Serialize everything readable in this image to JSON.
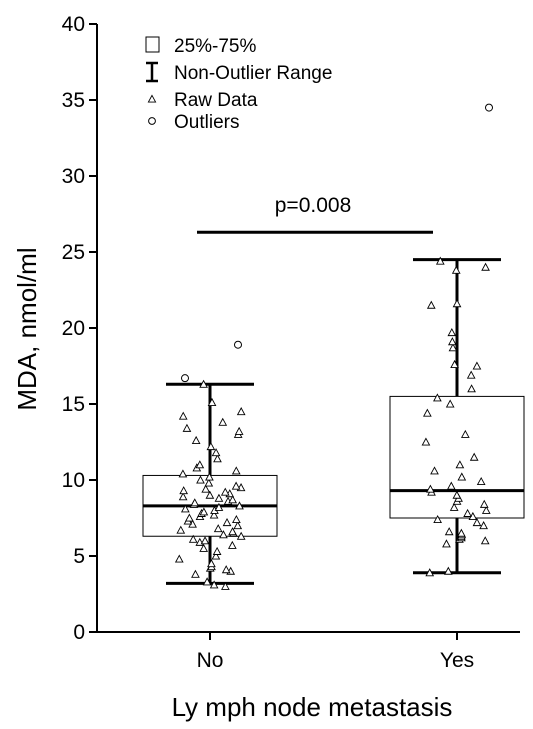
{
  "chart_data": {
    "type": "box",
    "xlabel": "Ly mph node metastasis",
    "ylabel": "MDA, nmol/ml",
    "ylim": [
      0,
      40
    ],
    "yticks": [
      0,
      5,
      10,
      15,
      20,
      25,
      30,
      35,
      40
    ],
    "categories": [
      "No",
      "Yes"
    ],
    "legend": {
      "position": "top-left",
      "items": [
        {
          "symbol": "box",
          "label": "25%-75%"
        },
        {
          "symbol": "whisker",
          "label": "Non-Outlier Range"
        },
        {
          "symbol": "triangle",
          "label": "Raw Data"
        },
        {
          "symbol": "circle",
          "label": "Outliers"
        }
      ]
    },
    "annotation": {
      "text": "p=0.008",
      "y": 26.3
    },
    "groups": [
      {
        "name": "No",
        "q1": 6.3,
        "median": 8.3,
        "q3": 10.3,
        "whisker_low": 3.2,
        "whisker_high": 16.3,
        "outliers": [
          16.7,
          18.9
        ],
        "raw": [
          3.0,
          3.1,
          3.3,
          3.8,
          4.0,
          4.1,
          4.2,
          4.3,
          4.5,
          4.8,
          5.0,
          5.3,
          5.5,
          5.7,
          5.9,
          6.0,
          6.1,
          6.3,
          6.4,
          6.5,
          6.6,
          6.7,
          6.8,
          7.0,
          7.1,
          7.2,
          7.3,
          7.4,
          7.5,
          7.6,
          7.7,
          7.8,
          7.9,
          8.0,
          8.1,
          8.2,
          8.3,
          8.4,
          8.5,
          8.6,
          8.7,
          8.8,
          8.9,
          9.0,
          9.1,
          9.2,
          9.3,
          9.4,
          9.5,
          9.6,
          9.8,
          10.0,
          10.2,
          10.4,
          10.6,
          10.8,
          11.0,
          11.4,
          11.8,
          12.2,
          12.6,
          13.0,
          13.2,
          13.4,
          13.8,
          14.2,
          14.5,
          15.1,
          16.3
        ]
      },
      {
        "name": "Yes",
        "q1": 7.5,
        "median": 9.3,
        "q3": 15.5,
        "whisker_low": 3.9,
        "whisker_high": 24.5,
        "outliers": [
          34.5
        ],
        "raw": [
          3.9,
          4.0,
          5.8,
          6.0,
          6.1,
          6.2,
          6.3,
          6.4,
          6.5,
          6.6,
          7.0,
          7.2,
          7.4,
          7.6,
          7.8,
          8.0,
          8.2,
          8.4,
          8.6,
          8.8,
          9.0,
          9.2,
          9.4,
          9.6,
          9.9,
          10.2,
          10.6,
          11.0,
          11.5,
          12.5,
          13.0,
          14.4,
          15.0,
          15.4,
          16.0,
          16.9,
          17.5,
          17.6,
          18.7,
          19.1,
          19.7,
          21.5,
          21.6,
          23.8,
          24.0,
          24.4
        ]
      }
    ]
  }
}
